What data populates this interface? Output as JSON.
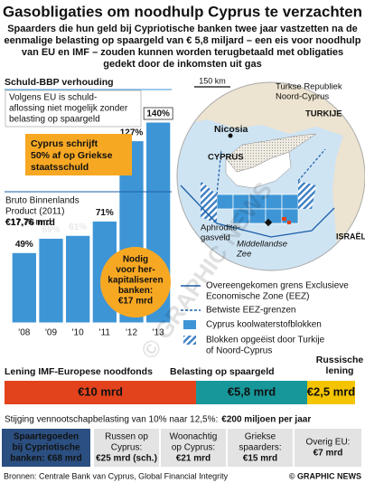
{
  "title": "Gasobligaties om noodhulp Cyprus te verzachten",
  "subtitle": [
    "Spaarders die hun geld bij Cypriotische banken twee jaar vastzetten na de",
    "eenmalige belasting op spaargeld van € 5,8 miljard – een eis voor noodhulp",
    "van EU en IMF – zouden kunnen worden terugbetaald met obligaties",
    "gedekt door de inkomsten uit gas"
  ],
  "chart_data": {
    "type": "bar",
    "title": "Schuld-BBP verhouding",
    "categories": [
      "'08",
      "'09",
      "'10",
      "'11",
      "'12",
      "'13"
    ],
    "values": [
      49,
      59,
      61,
      71,
      127,
      140
    ],
    "value_labels": [
      "49%",
      "59%",
      "61%",
      "71%",
      "127%",
      "140%"
    ],
    "color": "#3d95d6"
  },
  "annotations": {
    "eu_note": [
      "Volgens EU is schuld-",
      "aflossing niet mogelijk zonder",
      "belasting op spaargeld"
    ],
    "writeoff": [
      "Cyprus schrijft",
      "50% af op Griekse",
      "staatsschuld"
    ],
    "gdp": [
      "Bruto Binnenlands",
      "Product (2011)",
      "€17,76 mrd"
    ],
    "recap": [
      "Nodig",
      "voor her-",
      "kapitaliseren",
      "banken:",
      "€17 mrd"
    ]
  },
  "map": {
    "scale": "150 km",
    "trnc": [
      "Turkse Republiek",
      "Noord-Cyprus"
    ],
    "turkey": "TURKIJE",
    "capital": "Nicosia",
    "cyprus": "CYPRUS",
    "gasfield": [
      "Aphrodite-",
      "gasveld"
    ],
    "sea": [
      "Middellandse",
      "Zee"
    ],
    "israel": "ISRAËL"
  },
  "legend": [
    [
      "Overeengekomen grens Exclusieve",
      "Economische Zone (EEZ)"
    ],
    [
      "Betwiste EEZ-grenzen"
    ],
    [
      "Cyprus koolwaterstofblokken"
    ],
    [
      "Blokken opgeëist door Turkije",
      "of Noord-Cyprus"
    ]
  ],
  "funding": {
    "labels": [
      "Lening IMF-Europese noodfonds",
      "Belasting op spaargeld"
    ],
    "russian": [
      "Russische",
      "lening"
    ],
    "segments": [
      {
        "value": 10,
        "label": "€10 mrd",
        "color": "#e2421c"
      },
      {
        "value": 5.8,
        "label": "€5,8 mrd",
        "color": "#17979a"
      },
      {
        "value": 2.5,
        "label": "€2,5 mrd",
        "color": "#f5c400"
      }
    ]
  },
  "tax_note": "Stijging vennootschapbelasting van 10% naar 12,5%:",
  "tax_value": "€200 miljoen per jaar",
  "deposits": [
    [
      "Spaartegoeden",
      "bij Cypriotische",
      "banken: €68 mrd"
    ],
    [
      "Russen op",
      "Cyprus:",
      "€25 mrd (sch.)"
    ],
    [
      "Woonachtig",
      "op Cyprus:",
      "€21 mrd"
    ],
    [
      "Griekse",
      "spaarders:",
      "€15 mrd"
    ],
    [
      "Overig EU:",
      "€7 mrd"
    ]
  ],
  "source": "Bronnen: Centrale Bank van Cyprus, Global Financial Integrity",
  "credit": "© GRAPHIC NEWS",
  "watermark": "© GRAPHIC NEWS"
}
